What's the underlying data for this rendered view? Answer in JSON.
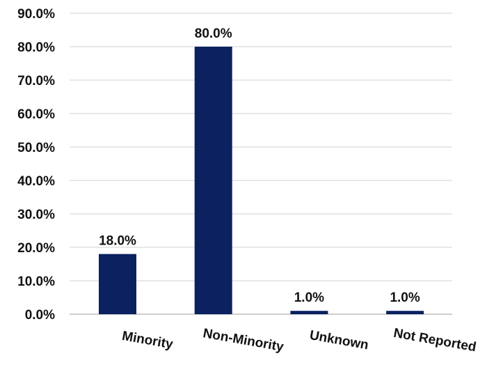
{
  "chart_data": {
    "type": "bar",
    "title": "",
    "xlabel": "",
    "ylabel": "",
    "categories": [
      "Minority",
      "Non-Minority",
      "Unknown",
      "Not Reported"
    ],
    "values": [
      18.0,
      80.0,
      1.0,
      1.0
    ],
    "value_labels": [
      "18.0%",
      "80.0%",
      "1.0%",
      "1.0%"
    ],
    "ylim": [
      0,
      90
    ],
    "yticks": [
      0,
      10,
      20,
      30,
      40,
      50,
      60,
      70,
      80,
      90
    ],
    "ytick_labels": [
      "0.0%",
      "10.0%",
      "20.0%",
      "30.0%",
      "40.0%",
      "50.0%",
      "60.0%",
      "70.0%",
      "80.0%",
      "90.0%"
    ],
    "grid": true,
    "legend": "none",
    "bar_color": "#0b2160",
    "grid_color": "#d0d0d0",
    "axis_color": "#bdbdbd"
  }
}
